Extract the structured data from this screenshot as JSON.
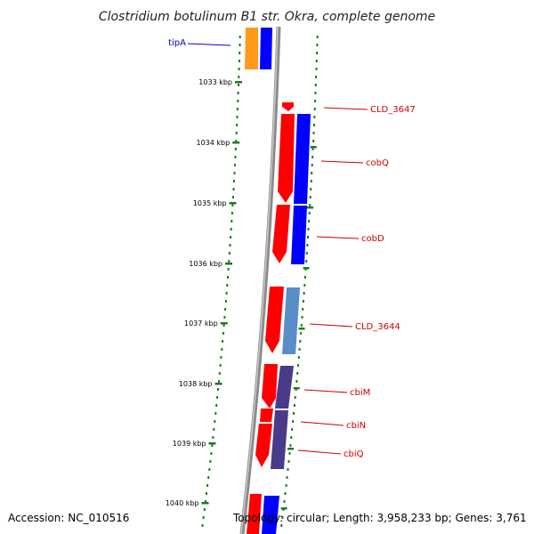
{
  "title": "Clostridium botulinum B1 str. Okra, complete genome",
  "footer": {
    "accession": "Accession: NC_010516",
    "topology": "Topology: circular; Length: 3,958,233 bp; Genes: 3,761"
  },
  "colors": {
    "backbone": "#8a8a8a",
    "ticks": "#1f7a1f",
    "forward_cds": "#ff0000",
    "reverse_cds": "#0000ff",
    "blue_gray": "#5a8cc8",
    "purple": "#4a3a8a",
    "orange": "#ff9a1a",
    "label_red": "#cc0000",
    "label_blue": "#0000cc"
  },
  "scale_labels": [
    "1033 kbp",
    "1034 kbp",
    "1035 kbp",
    "1036 kbp",
    "1037 kbp",
    "1038 kbp",
    "1039 kbp",
    "1040 kbp"
  ],
  "gene_labels": [
    {
      "text": "tipA",
      "color": "#0000cc"
    },
    {
      "text": "CLD_3647",
      "color": "#cc0000"
    },
    {
      "text": "cobQ",
      "color": "#cc0000"
    },
    {
      "text": "cobD",
      "color": "#cc0000"
    },
    {
      "text": "CLD_3644",
      "color": "#cc0000"
    },
    {
      "text": "cbiM",
      "color": "#cc0000"
    },
    {
      "text": "cbiN",
      "color": "#cc0000"
    },
    {
      "text": "cbiQ",
      "color": "#cc0000"
    }
  ]
}
